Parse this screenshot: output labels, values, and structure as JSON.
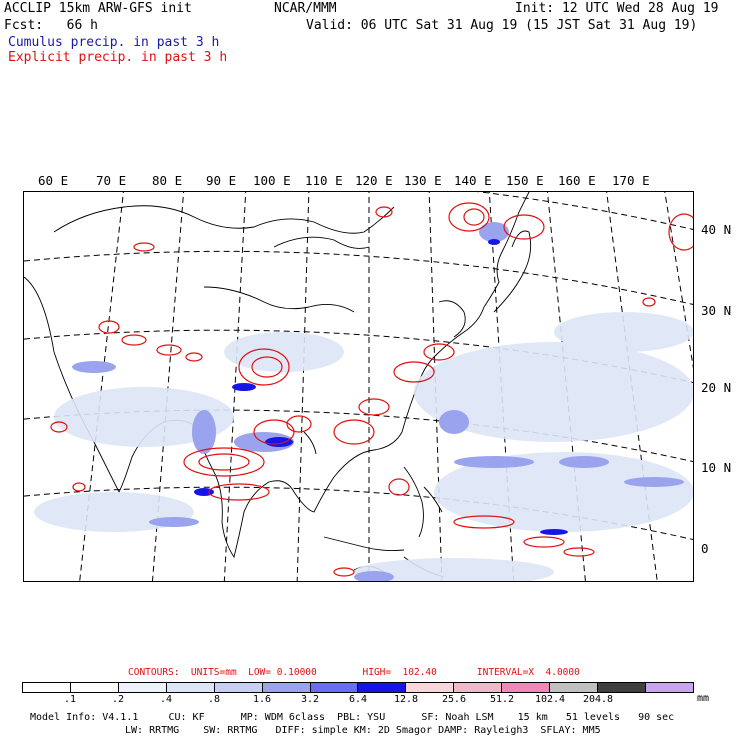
{
  "header": {
    "left1": "ACCLIP 15km ARW-GFS init",
    "center1": "NCAR/MMM",
    "right1": "Init: 12 UTC Wed 28 Aug 19",
    "left2": "Fcst:   66 h",
    "right2": "Valid: 06 UTC Sat 31 Aug 19 (15 JST Sat 31 Aug 19)",
    "legend_cumulus": "Cumulus precip. in past 3 h",
    "legend_explicit": "Explicit precip. in past 3 h"
  },
  "colors": {
    "cumulus": "#1a1aa8",
    "explicit": "#e01010"
  },
  "map": {
    "lon_labels": [
      "60 E",
      "70 E",
      "80 E",
      "90 E",
      "100 E",
      "110 E",
      "120 E",
      "130 E",
      "140 E",
      "150 E",
      "160 E",
      "170 E"
    ],
    "lat_labels": [
      "40 N",
      "30 N",
      "20 N",
      "10 N",
      "0"
    ]
  },
  "contours": {
    "text": "CONTOURS:  UNITS=mm  LOW= 0.10000        HIGH=  102.40       INTERVAL=X  4.0000"
  },
  "colorbar": {
    "colors": [
      "#ffffff",
      "#ffffff",
      "#eef3fb",
      "#dde6f7",
      "#c7cff2",
      "#9aa3ee",
      "#6a6ef0",
      "#1515e8",
      "#f9d6dc",
      "#f2b8c8",
      "#f088b8",
      "#c0c0c0",
      "#404040",
      "#c9a4f0"
    ],
    "labels": [
      ".1",
      ".2",
      ".4",
      ".8",
      "1.6",
      "3.2",
      "6.4",
      "12.8",
      "25.6",
      "51.2",
      "102.4",
      "204.8"
    ],
    "units": "mm"
  },
  "model_info": {
    "line1": "Model Info: V4.1.1     CU: KF      MP: WDM 6class  PBL: YSU      SF: Noah LSM    15 km   51 levels   90 sec",
    "line2": "LW: RRTMG    SW: RRTMG   DIFF: simple KM: 2D Smagor DAMP: Rayleigh3  SFLAY: MM5"
  }
}
